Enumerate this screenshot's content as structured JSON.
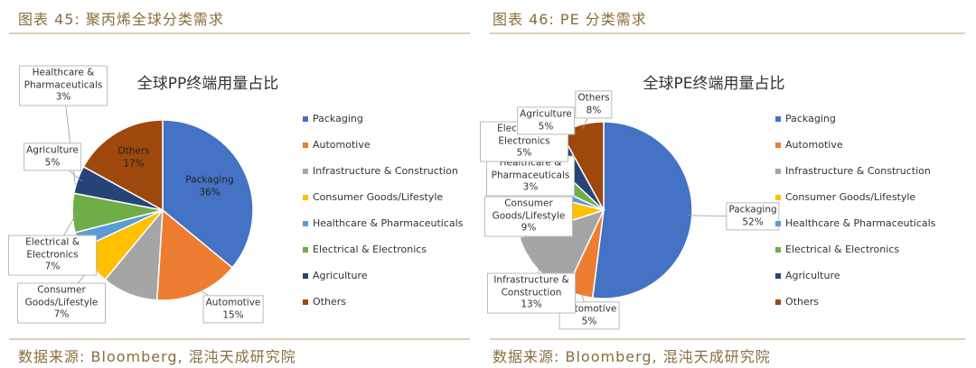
{
  "figures": [
    {
      "caption": "图表 45: 聚丙烯全球分类需求",
      "source": "数据来源: Bloomberg, 混沌天成研究院"
    },
    {
      "caption": "图表 46: PE 分类需求",
      "source": "数据来源: Bloomberg, 混沌天成研究院"
    }
  ],
  "chart_data": [
    {
      "type": "pie",
      "title": "全球PP终端用量占比",
      "categories": [
        "Packaging",
        "Automotive",
        "Infrastructure & Construction",
        "Consumer Goods/Lifestyle",
        "Healthcare & Pharmaceuticals",
        "Electrical & Electronics",
        "Agriculture",
        "Others"
      ],
      "values": [
        36,
        15,
        10,
        7,
        3,
        7,
        5,
        17
      ],
      "value_labels": [
        "36%",
        "15%",
        null,
        "7%",
        "3%",
        "7%",
        "5%",
        "17%"
      ],
      "colors": [
        "#4472c4",
        "#ed7d31",
        "#a5a5a5",
        "#ffc000",
        "#5b9bd5",
        "#70ad47",
        "#264478",
        "#9e480e"
      ],
      "legend": "right"
    },
    {
      "type": "pie",
      "title": "全球PE终端用量占比",
      "categories": [
        "Packaging",
        "Automotive",
        "Infrastructure & Construction",
        "Consumer Goods/Lifestyle",
        "Healthcare & Pharmaceuticals",
        "Electrical & Electronics",
        "Agriculture",
        "Others"
      ],
      "values": [
        52,
        5,
        13,
        9,
        3,
        5,
        5,
        8
      ],
      "value_labels": [
        "52%",
        "5%",
        "13%",
        "9%",
        "3%",
        "5%",
        "5%",
        "8%"
      ],
      "colors": [
        "#4472c4",
        "#ed7d31",
        "#a5a5a5",
        "#ffc000",
        "#5b9bd5",
        "#70ad47",
        "#264478",
        "#9e480e"
      ],
      "legend": "right"
    }
  ]
}
